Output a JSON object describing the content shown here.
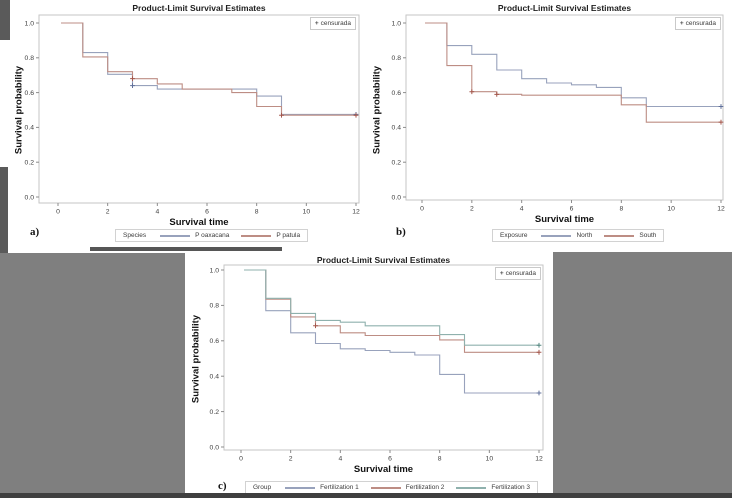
{
  "page": {
    "background_color": "#7f7f7f",
    "panel_background": "#ffffff",
    "frame_color": "#c6c6c6",
    "tick_color": "#8c8c8c",
    "tick_text_color": "#3d3d3d"
  },
  "chart_data": [
    {
      "type": "line",
      "subtype": "kaplan-meier-step",
      "panel_letter": "a)",
      "title": "Product-Limit Survival Estimates",
      "xlabel": "Survival time",
      "ylabel": "Survival probability",
      "xlim": [
        0,
        12
      ],
      "ylim": [
        0.0,
        1.0
      ],
      "xticks": [
        "0",
        "2",
        "4",
        "6",
        "8",
        "10",
        "12"
      ],
      "yticks": [
        "1.0",
        "0.8",
        "0.6",
        "0.4",
        "0.2",
        "0.0"
      ],
      "grid": false,
      "censored_legend": {
        "marker": "+",
        "label": "censurada",
        "position": "top-right"
      },
      "legend_title": "Species",
      "legend_position": "bottom",
      "series": [
        {
          "name": "P oaxacana",
          "color": "#98a2bc",
          "marker_color": "#5f6f9a",
          "steps": [
            [
              0,
              1.0
            ],
            [
              1,
              0.83
            ],
            [
              2,
              0.705
            ],
            [
              3,
              0.64
            ],
            [
              4,
              0.62
            ],
            [
              8,
              0.58
            ],
            [
              9,
              0.475
            ],
            [
              12,
              0.475
            ]
          ],
          "censored": [
            [
              3,
              0.64
            ],
            [
              12,
              0.475
            ]
          ]
        },
        {
          "name": "P patula",
          "color": "#bd8d84",
          "marker_color": "#a4564b",
          "steps": [
            [
              0,
              1.0
            ],
            [
              1,
              0.805
            ],
            [
              2,
              0.72
            ],
            [
              3,
              0.68
            ],
            [
              4,
              0.65
            ],
            [
              5,
              0.62
            ],
            [
              7,
              0.6
            ],
            [
              8,
              0.52
            ],
            [
              9,
              0.47
            ],
            [
              12,
              0.47
            ]
          ],
          "censored": [
            [
              3,
              0.68
            ],
            [
              9,
              0.47
            ],
            [
              12,
              0.47
            ]
          ]
        }
      ]
    },
    {
      "type": "line",
      "subtype": "kaplan-meier-step",
      "panel_letter": "b)",
      "title": "Product-Limit Survival Estimates",
      "xlabel": "Survival time",
      "ylabel": "Survival probability",
      "xlim": [
        0,
        12
      ],
      "ylim": [
        0.0,
        1.0
      ],
      "xticks": [
        "0",
        "2",
        "4",
        "6",
        "8",
        "10",
        "12"
      ],
      "yticks": [
        "1.0",
        "0.8",
        "0.6",
        "0.4",
        "0.2",
        "0.0"
      ],
      "grid": false,
      "censored_legend": {
        "marker": "+",
        "label": "censurada",
        "position": "top-right"
      },
      "legend_title": "Exposure",
      "legend_position": "bottom",
      "series": [
        {
          "name": "North",
          "color": "#98a2bc",
          "marker_color": "#5f6f9a",
          "steps": [
            [
              0,
              1.0
            ],
            [
              1,
              0.87
            ],
            [
              2,
              0.82
            ],
            [
              3,
              0.73
            ],
            [
              4,
              0.68
            ],
            [
              5,
              0.655
            ],
            [
              6,
              0.645
            ],
            [
              7,
              0.63
            ],
            [
              8,
              0.57
            ],
            [
              9,
              0.52
            ],
            [
              12,
              0.52
            ]
          ],
          "censored": [
            [
              12,
              0.52
            ]
          ]
        },
        {
          "name": "South",
          "color": "#bd8d84",
          "marker_color": "#a4564b",
          "steps": [
            [
              0,
              1.0
            ],
            [
              1,
              0.755
            ],
            [
              2,
              0.605
            ],
            [
              3,
              0.59
            ],
            [
              4,
              0.585
            ],
            [
              8,
              0.53
            ],
            [
              9,
              0.43
            ],
            [
              12,
              0.43
            ]
          ],
          "censored": [
            [
              2,
              0.605
            ],
            [
              3,
              0.59
            ],
            [
              12,
              0.43
            ]
          ]
        }
      ]
    },
    {
      "type": "line",
      "subtype": "kaplan-meier-step",
      "panel_letter": "c)",
      "title": "Product-Limit Survival Estimates",
      "xlabel": "Survival time",
      "ylabel": "Survival probability",
      "xlim": [
        0,
        12
      ],
      "ylim": [
        0.0,
        1.0
      ],
      "xticks": [
        "0",
        "2",
        "4",
        "6",
        "8",
        "10",
        "12"
      ],
      "yticks": [
        "1.0",
        "0.8",
        "0.6",
        "0.4",
        "0.2",
        "0.0"
      ],
      "grid": false,
      "censored_legend": {
        "marker": "+",
        "label": "censurada",
        "position": "top-right"
      },
      "legend_title": "Group",
      "legend_position": "bottom",
      "series": [
        {
          "name": "Fertilization 1",
          "color": "#98a2bc",
          "marker_color": "#5f6f9a",
          "steps": [
            [
              0,
              1.0
            ],
            [
              1,
              0.77
            ],
            [
              2,
              0.645
            ],
            [
              3,
              0.585
            ],
            [
              4,
              0.555
            ],
            [
              5,
              0.545
            ],
            [
              6,
              0.535
            ],
            [
              7,
              0.52
            ],
            [
              8,
              0.41
            ],
            [
              9,
              0.305
            ],
            [
              12,
              0.305
            ]
          ],
          "censored": [
            [
              12,
              0.305
            ]
          ]
        },
        {
          "name": "Fertilization 2",
          "color": "#bd8d84",
          "marker_color": "#a4564b",
          "steps": [
            [
              0,
              1.0
            ],
            [
              1,
              0.835
            ],
            [
              2,
              0.735
            ],
            [
              3,
              0.685
            ],
            [
              4,
              0.645
            ],
            [
              5,
              0.63
            ],
            [
              8,
              0.605
            ],
            [
              9,
              0.535
            ],
            [
              12,
              0.535
            ]
          ],
          "censored": [
            [
              3,
              0.685
            ],
            [
              12,
              0.535
            ]
          ]
        },
        {
          "name": "Fertilization 3",
          "color": "#8fb1ad",
          "marker_color": "#52867f",
          "steps": [
            [
              0,
              1.0
            ],
            [
              1,
              0.84
            ],
            [
              2,
              0.755
            ],
            [
              3,
              0.715
            ],
            [
              4,
              0.705
            ],
            [
              5,
              0.685
            ],
            [
              8,
              0.635
            ],
            [
              9,
              0.575
            ],
            [
              12,
              0.575
            ]
          ],
          "censored": [
            [
              12,
              0.575
            ]
          ]
        }
      ]
    }
  ]
}
